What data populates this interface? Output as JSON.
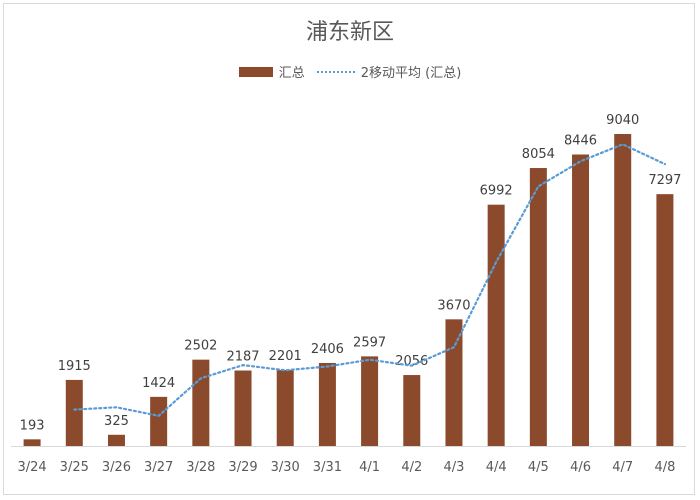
{
  "chart_data": {
    "type": "bar",
    "title": "浦东新区",
    "categories": [
      "3/24",
      "3/25",
      "3/26",
      "3/27",
      "3/28",
      "3/29",
      "3/30",
      "3/31",
      "4/1",
      "4/2",
      "4/3",
      "4/4",
      "4/5",
      "4/6",
      "4/7",
      "4/8"
    ],
    "series": [
      {
        "name": "汇总",
        "type": "bar",
        "color": "#8b4a2c",
        "values": [
          193,
          1915,
          325,
          1424,
          2502,
          2187,
          2201,
          2406,
          2597,
          2056,
          3670,
          6992,
          8054,
          8446,
          9040,
          7297
        ]
      },
      {
        "name": "2移动平均 (汇总)",
        "type": "line",
        "style": "dotted",
        "color": "#5b9bd5",
        "values": [
          null,
          1054,
          1120,
          874.5,
          1963,
          2344.5,
          2194,
          2303.5,
          2501.5,
          2326.5,
          2863,
          5331,
          7523,
          8250,
          8743,
          8168.5
        ]
      }
    ],
    "ylim": [
      0,
      9500
    ],
    "legend_position": "top",
    "grid": false,
    "data_labels": true
  }
}
